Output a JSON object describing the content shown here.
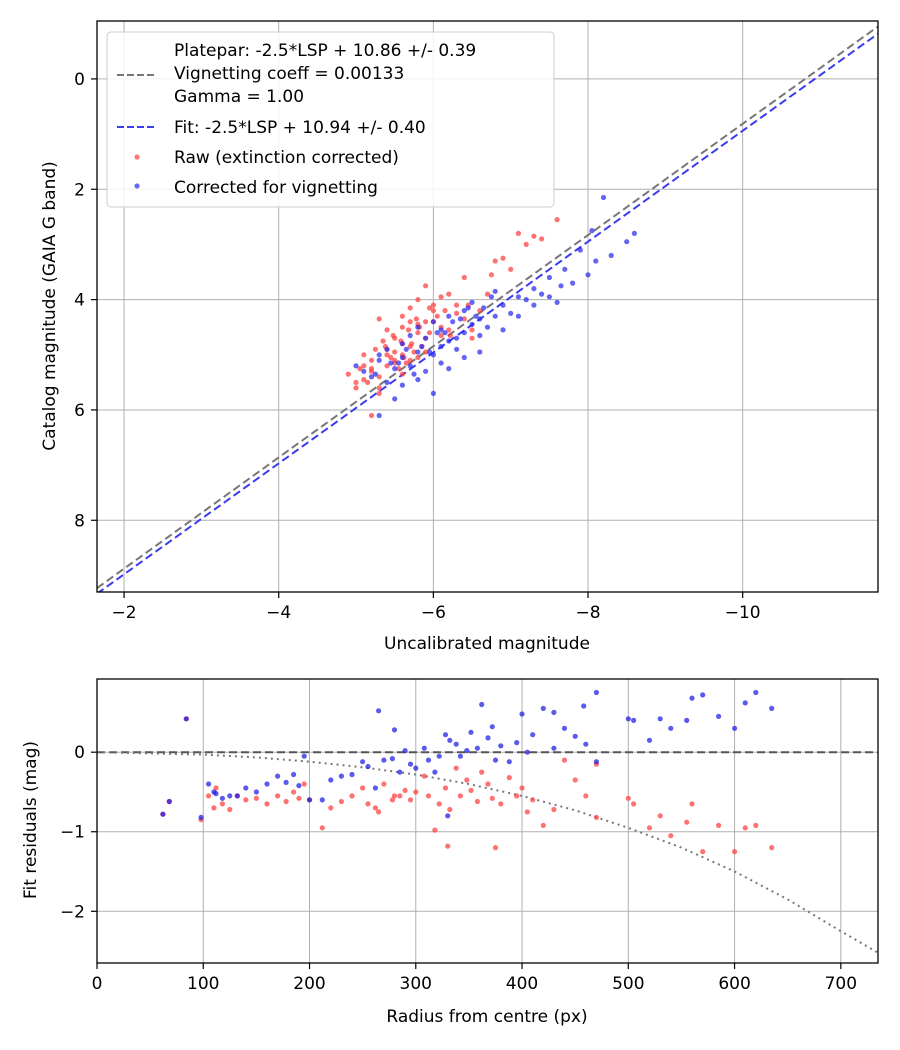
{
  "chart_data": [
    {
      "type": "scatter",
      "xlabel": "Uncalibrated magnitude",
      "ylabel": "Catalog magnitude (GAIA G band)",
      "xlim": [
        -1.65,
        -11.75
      ],
      "ylim": [
        9.3,
        -1.05
      ],
      "x_inverted": true,
      "y_inverted": true,
      "xticks": [
        -2,
        -4,
        -6,
        -8,
        -10
      ],
      "xtick_labels": [
        "−2",
        "−4",
        "−6",
        "−8",
        "−10"
      ],
      "yticks": [
        0,
        2,
        4,
        6,
        8
      ],
      "ytick_labels": [
        "0",
        "2",
        "4",
        "6",
        "8"
      ],
      "grid": true,
      "legend_position": "top-left",
      "lines": [
        {
          "name": "platepar",
          "label": "Platepar: -2.5*LSP + 10.86 +/- 0.39\nVignetting coeff = 0.00133\nGamma = 1.00",
          "style": "dashed",
          "color": "#777777",
          "x": [
            -1.65,
            -11.75
          ],
          "y": [
            9.23,
            -0.95
          ]
        },
        {
          "name": "fit",
          "label": "Fit: -2.5*LSP + 10.94 +/- 0.40",
          "style": "dashed",
          "color": "#3b3bf2",
          "x": [
            -1.65,
            -11.75
          ],
          "y": [
            9.33,
            -0.82
          ]
        }
      ],
      "series": [
        {
          "name": "Raw (extinction corrected)",
          "color": "#ff3b3b",
          "x": [
            -4.9,
            -5.0,
            -5.1,
            -5.2,
            -5.0,
            -5.3,
            -5.4,
            -5.2,
            -5.1,
            -5.5,
            -5.4,
            -5.3,
            -5.6,
            -5.5,
            -5.2,
            -5.4,
            -5.7,
            -5.6,
            -5.5,
            -5.8,
            -5.9,
            -5.6,
            -5.7,
            -5.3,
            -5.8,
            -5.9,
            -6.0,
            -5.5,
            -5.6,
            -5.7,
            -5.4,
            -5.8,
            -6.1,
            -5.9,
            -6.0,
            -6.2,
            -5.7,
            -6.3,
            -6.1,
            -6.4,
            -5.2,
            -5.3,
            -5.1,
            -5.6,
            -5.9,
            -6.0,
            -6.5,
            -6.2,
            -6.3,
            -6.1,
            -5.8,
            -6.6,
            -6.4,
            -6.7,
            -6.5,
            -6.8,
            -7.0,
            -7.1,
            -7.2,
            -6.9,
            -7.3,
            -7.4,
            -7.6,
            -5.45,
            -5.55,
            -5.65,
            -5.75,
            -5.85,
            -5.95,
            -6.05,
            -5.35,
            -5.25,
            -5.15,
            -5.05,
            -6.15,
            -5.62,
            -5.72,
            -5.82,
            -5.48,
            -5.38,
            -6.45,
            -6.75,
            -5.95,
            -6.22,
            -5.58,
            -5.68,
            -5.78
          ],
          "y": [
            5.35,
            5.5,
            5.2,
            5.1,
            5.6,
            5.4,
            5.0,
            5.3,
            5.45,
            5.1,
            4.9,
            5.6,
            5.0,
            4.7,
            5.25,
            4.55,
            5.1,
            4.8,
            5.15,
            4.6,
            4.95,
            4.5,
            4.4,
            4.35,
            5.05,
            4.7,
            4.2,
            4.95,
            4.3,
            4.85,
            5.2,
            4.45,
            4.65,
            4.4,
            4.1,
            4.55,
            4.15,
            4.25,
            3.95,
            4.35,
            6.1,
            5.7,
            5.0,
            5.35,
            3.75,
            4.4,
            4.7,
            3.9,
            4.1,
            4.5,
            4.0,
            4.2,
            3.6,
            3.9,
            4.55,
            3.3,
            3.45,
            2.8,
            3.0,
            3.25,
            2.85,
            2.9,
            2.55,
            5.05,
            5.25,
            5.15,
            4.95,
            4.85,
            4.6,
            4.3,
            4.75,
            4.9,
            5.5,
            5.25,
            4.2,
            5.05,
            4.8,
            4.5,
            4.65,
            4.85,
            4.1,
            3.55,
            4.15,
            4.65,
            4.75,
            4.55,
            4.35
          ]
        },
        {
          "name": "Corrected for vignetting",
          "color": "#2a2af0",
          "x": [
            -5.0,
            -5.1,
            -5.2,
            -5.3,
            -5.4,
            -5.3,
            -5.5,
            -5.6,
            -5.4,
            -5.7,
            -5.6,
            -5.8,
            -5.9,
            -5.7,
            -6.0,
            -5.8,
            -6.1,
            -5.9,
            -6.2,
            -6.0,
            -6.3,
            -6.1,
            -6.4,
            -6.2,
            -6.5,
            -6.3,
            -6.6,
            -6.4,
            -6.7,
            -6.5,
            -6.8,
            -6.6,
            -6.9,
            -7.0,
            -7.1,
            -7.2,
            -6.8,
            -7.3,
            -7.4,
            -7.5,
            -7.6,
            -7.7,
            -7.8,
            -8.0,
            -8.1,
            -8.3,
            -8.5,
            -8.6,
            -7.9,
            -8.2,
            -5.3,
            -5.5,
            -6.0,
            -5.6,
            -5.8,
            -6.2,
            -6.4,
            -6.6,
            -6.1,
            -6.9,
            -7.1,
            -7.3,
            -7.5,
            -5.25,
            -5.45,
            -5.65,
            -5.85,
            -6.05,
            -6.25,
            -6.45,
            -6.65,
            -5.75,
            -5.95,
            -6.35,
            -6.55,
            -6.75,
            -6.15,
            -5.55,
            -8.05,
            -7.65
          ],
          "y": [
            5.2,
            5.3,
            5.4,
            5.1,
            5.5,
            5.0,
            5.25,
            5.05,
            4.9,
            5.2,
            4.8,
            4.95,
            5.3,
            4.65,
            5.0,
            4.5,
            4.85,
            4.7,
            4.75,
            4.4,
            4.9,
            4.55,
            4.6,
            4.3,
            4.45,
            4.7,
            4.35,
            4.2,
            4.5,
            4.05,
            4.3,
            4.65,
            4.1,
            4.25,
            3.95,
            4.0,
            3.85,
            3.8,
            3.9,
            3.6,
            4.05,
            3.45,
            3.7,
            3.55,
            3.3,
            3.2,
            2.95,
            2.8,
            3.1,
            2.15,
            6.1,
            5.8,
            5.7,
            5.55,
            5.45,
            5.25,
            5.05,
            4.95,
            5.15,
            4.55,
            4.3,
            4.1,
            3.95,
            5.35,
            5.15,
            4.9,
            4.85,
            4.6,
            4.4,
            4.15,
            4.15,
            5.35,
            4.95,
            4.35,
            4.3,
            3.95,
            4.6,
            5.15,
            2.75,
            3.75
          ]
        }
      ]
    },
    {
      "type": "scatter",
      "xlabel": "Radius from centre (px)",
      "ylabel": "Fit residuals (mag)",
      "xlim": [
        0,
        735
      ],
      "ylim": [
        -2.65,
        0.92
      ],
      "xticks": [
        0,
        100,
        200,
        300,
        400,
        500,
        600,
        700
      ],
      "xtick_labels": [
        "0",
        "100",
        "200",
        "300",
        "400",
        "500",
        "600",
        "700"
      ],
      "yticks": [
        0,
        -1,
        -2
      ],
      "ytick_labels": [
        "0",
        "−1",
        "−2"
      ],
      "grid": true,
      "lines": [
        {
          "name": "zero",
          "style": "dashed",
          "color": "#555555",
          "x": [
            0,
            735
          ],
          "y": [
            0,
            0
          ]
        },
        {
          "name": "vignetting-curve",
          "style": "dotted",
          "color": "#777777",
          "x": [
            0,
            100,
            150,
            200,
            250,
            300,
            350,
            400,
            450,
            500,
            550,
            600,
            650,
            700,
            735
          ],
          "y": [
            0,
            -0.03,
            -0.065,
            -0.12,
            -0.19,
            -0.28,
            -0.4,
            -0.55,
            -0.73,
            -0.95,
            -1.2,
            -1.5,
            -1.85,
            -2.25,
            -2.52
          ]
        }
      ],
      "series": [
        {
          "name": "Raw",
          "color": "#ff3b3b",
          "x": [
            62,
            68,
            84,
            98,
            105,
            110,
            112,
            118,
            125,
            132,
            140,
            150,
            160,
            170,
            178,
            185,
            190,
            195,
            200,
            212,
            220,
            230,
            240,
            250,
            255,
            262,
            270,
            278,
            285,
            290,
            295,
            300,
            308,
            312,
            318,
            322,
            328,
            332,
            338,
            342,
            348,
            352,
            358,
            362,
            368,
            372,
            380,
            388,
            395,
            400,
            405,
            410,
            420,
            430,
            440,
            450,
            460,
            470,
            500,
            505,
            520,
            530,
            540,
            555,
            560,
            570,
            585,
            600,
            610,
            620,
            635,
            330,
            375,
            470,
            280,
            265
          ],
          "y": [
            -0.78,
            -0.62,
            0.42,
            -0.85,
            -0.55,
            -0.7,
            -0.45,
            -0.65,
            -0.72,
            -0.55,
            -0.6,
            -0.58,
            -0.65,
            -0.55,
            -0.62,
            -0.5,
            -0.58,
            -0.4,
            -0.6,
            -0.95,
            -0.7,
            -0.62,
            -0.55,
            -0.45,
            -0.65,
            -0.7,
            -0.4,
            -0.6,
            -0.55,
            -0.48,
            -0.6,
            -0.5,
            -0.3,
            -0.55,
            -0.98,
            -0.65,
            -0.45,
            -0.72,
            -0.2,
            -0.55,
            -0.35,
            -0.48,
            -0.62,
            -0.25,
            -0.4,
            -0.58,
            -0.65,
            -0.32,
            -0.55,
            -0.45,
            -0.75,
            -0.6,
            -0.92,
            -0.72,
            -0.1,
            -0.35,
            -0.55,
            -0.15,
            -0.58,
            -0.65,
            -0.95,
            -0.8,
            -1.05,
            -0.88,
            -0.65,
            -1.25,
            -0.92,
            -1.25,
            -0.95,
            -0.92,
            -1.2,
            -1.18,
            -1.2,
            -0.82,
            -0.55,
            -0.75
          ]
        },
        {
          "name": "Corrected",
          "color": "#1a1ae6",
          "x": [
            62,
            68,
            84,
            98,
            105,
            110,
            112,
            118,
            125,
            132,
            140,
            150,
            160,
            170,
            178,
            185,
            190,
            195,
            200,
            212,
            220,
            230,
            240,
            250,
            255,
            262,
            270,
            278,
            285,
            290,
            295,
            300,
            308,
            312,
            318,
            322,
            328,
            332,
            338,
            342,
            348,
            352,
            358,
            362,
            368,
            372,
            380,
            388,
            395,
            400,
            405,
            410,
            420,
            430,
            440,
            450,
            460,
            470,
            500,
            505,
            520,
            530,
            540,
            555,
            560,
            570,
            585,
            600,
            610,
            620,
            635,
            330,
            375,
            470,
            280,
            265,
            430,
            458
          ],
          "y": [
            -0.78,
            -0.62,
            0.42,
            -0.82,
            -0.4,
            -0.5,
            -0.52,
            -0.58,
            -0.55,
            -0.55,
            -0.45,
            -0.5,
            -0.4,
            -0.3,
            -0.38,
            -0.28,
            -0.42,
            -0.05,
            -0.6,
            -0.6,
            -0.35,
            -0.3,
            -0.28,
            -0.12,
            -0.18,
            -0.45,
            -0.1,
            -0.08,
            -0.25,
            0.02,
            -0.15,
            -0.2,
            0.05,
            -0.1,
            -0.25,
            -0.05,
            0.22,
            0.15,
            0.1,
            -0.05,
            0.02,
            0.25,
            0.05,
            0.6,
            0.18,
            0.32,
            0.08,
            -0.12,
            0.12,
            0.48,
            0.0,
            0.22,
            0.55,
            0.5,
            0.3,
            0.2,
            0.1,
            0.75,
            0.42,
            0.4,
            0.15,
            0.42,
            0.3,
            0.4,
            0.68,
            0.72,
            0.45,
            0.3,
            0.62,
            0.75,
            0.55,
            -0.8,
            -0.1,
            -0.12,
            0.28,
            0.52,
            0.05,
            0.58
          ]
        }
      ]
    }
  ]
}
